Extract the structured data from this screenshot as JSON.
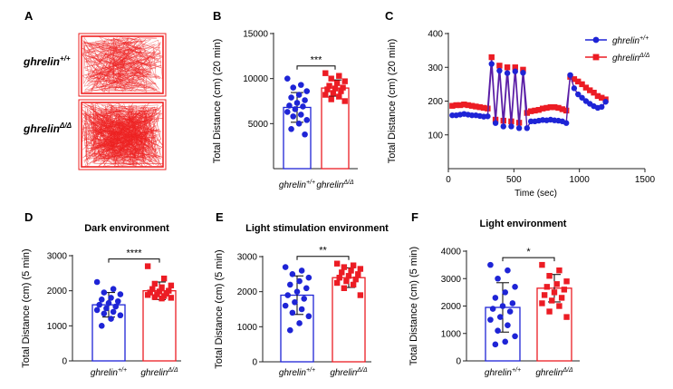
{
  "colors": {
    "blue": "#1e24d6",
    "red": "#ec1c24",
    "purple": "#5b1fa6",
    "axis": "#222222",
    "arena": "#ee2222"
  },
  "genotypes": {
    "wt_base": "ghrelin",
    "wt_sup": "+/+",
    "ko_base": "ghrelin",
    "ko_sup": "Δ/Δ"
  },
  "panels": {
    "A": {
      "letter": "A"
    },
    "B": {
      "letter": "B"
    },
    "C": {
      "letter": "C"
    },
    "D": {
      "letter": "D"
    },
    "E": {
      "letter": "E"
    },
    "F": {
      "letter": "F"
    }
  },
  "chart_data": [
    {
      "id": "B",
      "type": "bar",
      "title": "",
      "ylabel": "Total Distance (cm) (20 min)",
      "ylim": [
        0,
        15000
      ],
      "yticks": [
        5000,
        10000,
        15000
      ],
      "categories": [
        "ghrelin+/+",
        "ghrelinΔ/Δ"
      ],
      "series": [
        {
          "name": "ghrelin+/+",
          "mean": 6800,
          "sd": 1650,
          "points": [
            10000,
            9300,
            9000,
            8600,
            8200,
            7900,
            7600,
            7300,
            7000,
            6900,
            6600,
            6300,
            6000,
            5800,
            5400,
            5000,
            4400,
            3800
          ]
        },
        {
          "name": "ghrelinΔ/Δ",
          "mean": 8950,
          "sd": 900,
          "points": [
            10600,
            10300,
            10000,
            9700,
            9500,
            9200,
            9000,
            8900,
            8800,
            8600,
            8400,
            8200,
            8000,
            7700,
            7500
          ]
        }
      ],
      "significance": "***"
    },
    {
      "id": "C",
      "type": "line",
      "title": "",
      "ylabel": "Total Distance (cm) (20 min)",
      "xlabel": "Time (sec)",
      "xlim": [
        0,
        1500
      ],
      "ylim": [
        0,
        400
      ],
      "xticks": [
        0,
        500,
        1000,
        1500
      ],
      "yticks": [
        100,
        200,
        300,
        400
      ],
      "legend_position": "top-right",
      "series": [
        {
          "name": "ghrelin+/+",
          "marker": "circle",
          "x": [
            30,
            60,
            90,
            120,
            150,
            180,
            210,
            240,
            270,
            300,
            330,
            360,
            390,
            420,
            450,
            480,
            510,
            540,
            570,
            600,
            630,
            660,
            690,
            720,
            750,
            780,
            810,
            840,
            870,
            900,
            930,
            960,
            990,
            1020,
            1050,
            1080,
            1110,
            1140,
            1170,
            1200
          ],
          "y": [
            158,
            158,
            160,
            162,
            160,
            158,
            158,
            156,
            154,
            155,
            310,
            135,
            290,
            125,
            283,
            125,
            288,
            120,
            284,
            120,
            140,
            140,
            142,
            144,
            143,
            145,
            143,
            142,
            140,
            135,
            277,
            238,
            220,
            210,
            200,
            192,
            185,
            180,
            183,
            198
          ]
        },
        {
          "name": "ghrelinΔ/Δ",
          "marker": "square",
          "x": [
            30,
            60,
            90,
            120,
            150,
            180,
            210,
            240,
            270,
            300,
            330,
            360,
            390,
            420,
            450,
            480,
            510,
            540,
            570,
            600,
            630,
            660,
            690,
            720,
            750,
            780,
            810,
            840,
            870,
            900,
            930,
            960,
            990,
            1020,
            1050,
            1080,
            1110,
            1140,
            1170,
            1200
          ],
          "y": [
            186,
            188,
            188,
            190,
            188,
            186,
            184,
            182,
            180,
            178,
            330,
            145,
            305,
            142,
            300,
            140,
            300,
            136,
            293,
            165,
            170,
            172,
            174,
            178,
            180,
            182,
            182,
            180,
            176,
            172,
            272,
            265,
            258,
            250,
            240,
            232,
            225,
            215,
            210,
            205
          ]
        }
      ]
    },
    {
      "id": "D",
      "type": "bar",
      "title": "Dark environment",
      "ylabel": "Total Distance (cm) (5 min)",
      "ylim": [
        0,
        3000
      ],
      "yticks": [
        0,
        1000,
        2000,
        3000
      ],
      "categories": [
        "ghrelin+/+",
        "ghrelinΔ/Δ"
      ],
      "series": [
        {
          "name": "ghrelin+/+",
          "mean": 1600,
          "sd": 350,
          "points": [
            2250,
            2050,
            1950,
            1900,
            1800,
            1750,
            1700,
            1650,
            1600,
            1550,
            1500,
            1450,
            1400,
            1350,
            1300,
            1200,
            1000
          ]
        },
        {
          "name": "ghrelinΔ/Δ",
          "mean": 2000,
          "sd": 250,
          "points": [
            2700,
            2350,
            2200,
            2150,
            2100,
            2050,
            2000,
            1980,
            1950,
            1920,
            1900,
            1880,
            1850,
            1820,
            1800,
            1780
          ]
        }
      ],
      "significance": "****"
    },
    {
      "id": "E",
      "type": "bar",
      "title": "Light stimulation environment",
      "ylabel": "Total Distance (cm) (5 min)",
      "ylim": [
        0,
        3000
      ],
      "yticks": [
        0,
        1000,
        2000,
        3000
      ],
      "categories": [
        "ghrelin+/+",
        "ghrelinΔ/Δ"
      ],
      "series": [
        {
          "name": "ghrelin+/+",
          "mean": 1900,
          "sd": 550,
          "points": [
            2700,
            2600,
            2500,
            2400,
            2300,
            2200,
            2100,
            2000,
            1900,
            1800,
            1700,
            1600,
            1500,
            1400,
            1300,
            1100,
            900
          ]
        },
        {
          "name": "ghrelinΔ/Δ",
          "mean": 2400,
          "sd": 280,
          "points": [
            2800,
            2750,
            2700,
            2650,
            2600,
            2550,
            2500,
            2450,
            2400,
            2350,
            2300,
            2250,
            2200,
            2100,
            1900
          ]
        }
      ],
      "significance": "**"
    },
    {
      "id": "F",
      "type": "bar",
      "title": "Light environment",
      "ylabel": "Total Distance (cm) (5 min)",
      "ylim": [
        0,
        4000
      ],
      "yticks": [
        0,
        1000,
        2000,
        3000,
        4000
      ],
      "categories": [
        "ghrelin+/+",
        "ghrelinΔ/Δ"
      ],
      "series": [
        {
          "name": "ghrelin+/+",
          "mean": 1950,
          "sd": 900,
          "points": [
            3500,
            3300,
            3000,
            2700,
            2500,
            2300,
            2100,
            2000,
            1900,
            1800,
            1600,
            1500,
            1300,
            1100,
            900,
            700,
            600
          ]
        },
        {
          "name": "ghrelinΔ/Δ",
          "mean": 2650,
          "sd": 500,
          "points": [
            3500,
            3300,
            3100,
            2900,
            2800,
            2700,
            2600,
            2500,
            2400,
            2300,
            2200,
            2100,
            2000,
            1800,
            1600
          ]
        }
      ],
      "significance": "*"
    }
  ]
}
